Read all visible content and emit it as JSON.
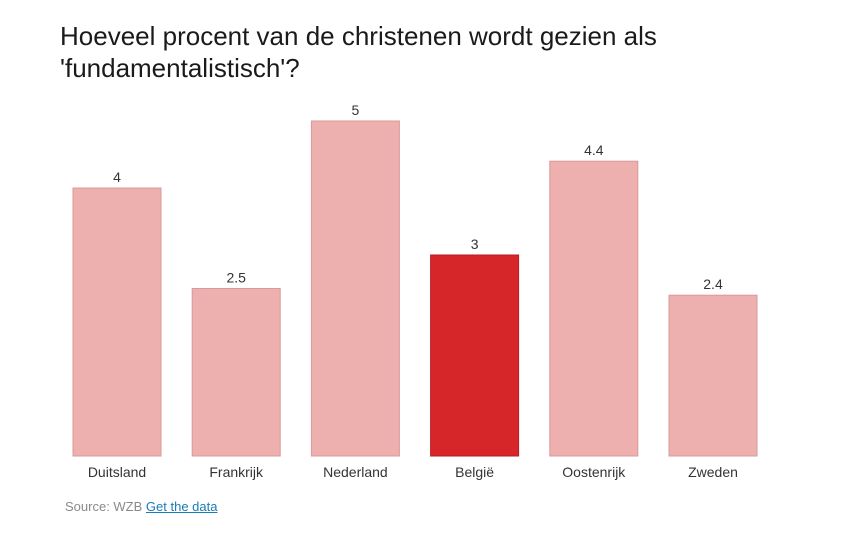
{
  "title": "Hoeveel procent van de christenen wordt gezien als 'fundamentalistisch'?",
  "source": {
    "prefix": "Source: WZB",
    "link_label": "Get the data"
  },
  "colors": {
    "bar": "#eeafaf",
    "bar_stroke": "#d89a9a",
    "highlight": "#d6262a",
    "highlight_stroke": "#b51e22",
    "label": "#333333"
  },
  "chart_data": {
    "type": "bar",
    "categories": [
      "Duitsland",
      "Frankrijk",
      "Nederland",
      "België",
      "Oostenrijk",
      "Zweden"
    ],
    "values": [
      4,
      2.5,
      5,
      3,
      4.4,
      2.4
    ],
    "value_labels": [
      "4",
      "2.5",
      "5",
      "3",
      "4.4",
      "2.4"
    ],
    "highlight": "België",
    "ylim": [
      0,
      5
    ],
    "grid": false,
    "title": "Hoeveel procent van de christenen wordt gezien als 'fundamentalistisch'?",
    "xlabel": "",
    "ylabel": ""
  }
}
